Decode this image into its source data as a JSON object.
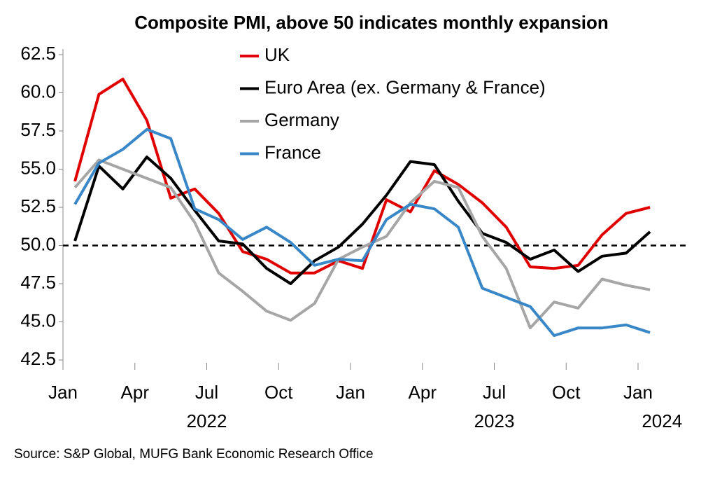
{
  "chart_data": {
    "type": "line",
    "title": "Composite PMI, above 50 indicates monthly expansion",
    "source": "Source: S&P Global, MUFG Bank Economic Research Office",
    "x": [
      "2022-01",
      "2022-02",
      "2022-03",
      "2022-04",
      "2022-05",
      "2022-06",
      "2022-07",
      "2022-08",
      "2022-09",
      "2022-10",
      "2022-11",
      "2022-12",
      "2023-01",
      "2023-02",
      "2023-03",
      "2023-04",
      "2023-05",
      "2023-06",
      "2023-07",
      "2023-08",
      "2023-09",
      "2023-10",
      "2023-11",
      "2023-12",
      "2024-01"
    ],
    "series": [
      {
        "name": "UK",
        "color": "#e00000",
        "values": [
          54.2,
          59.9,
          60.9,
          58.2,
          53.1,
          53.7,
          52.1,
          49.6,
          49.1,
          48.2,
          48.2,
          49.0,
          48.5,
          53.0,
          52.2,
          54.9,
          54.0,
          52.8,
          51.2,
          48.6,
          48.5,
          48.7,
          50.7,
          52.1,
          52.5
        ]
      },
      {
        "name": "Euro Area (ex. Germany & France)",
        "color": "#000000",
        "values": [
          50.3,
          55.2,
          53.7,
          55.8,
          54.4,
          52.3,
          50.3,
          50.1,
          48.5,
          47.5,
          49.0,
          49.9,
          51.4,
          53.3,
          55.5,
          55.3,
          52.9,
          50.8,
          50.2,
          49.1,
          49.7,
          48.3,
          49.3,
          49.5,
          50.9
        ]
      },
      {
        "name": "Germany",
        "color": "#a6a6a6",
        "values": [
          53.8,
          55.6,
          55.0,
          54.4,
          53.8,
          51.5,
          48.2,
          47.0,
          45.7,
          45.1,
          46.2,
          49.1,
          49.9,
          50.6,
          52.8,
          54.2,
          53.8,
          50.6,
          48.5,
          44.6,
          46.3,
          45.9,
          47.8,
          47.4,
          47.1
        ]
      },
      {
        "name": "France",
        "color": "#3a87c8",
        "values": [
          52.7,
          55.4,
          56.3,
          57.6,
          57.0,
          52.4,
          51.7,
          50.4,
          51.2,
          50.2,
          48.7,
          49.1,
          49.0,
          51.7,
          52.7,
          52.4,
          51.2,
          47.2,
          46.6,
          46.0,
          44.1,
          44.6,
          44.6,
          44.8,
          44.3
        ]
      }
    ],
    "reference_line": 50,
    "xlim": [
      "2022-01",
      "2024-03"
    ],
    "xticks": [
      {
        "value": "2022-01",
        "label": "Jan"
      },
      {
        "value": "2022-04",
        "label": "Apr"
      },
      {
        "value": "2022-07",
        "label": "Jul"
      },
      {
        "value": "2022-10",
        "label": "Oct"
      },
      {
        "value": "2023-01",
        "label": "Jan"
      },
      {
        "value": "2023-04",
        "label": "Apr"
      },
      {
        "value": "2023-07",
        "label": "Jul"
      },
      {
        "value": "2023-10",
        "label": "Oct"
      },
      {
        "value": "2024-01",
        "label": "Jan"
      }
    ],
    "xyears": [
      {
        "value": "2022-07",
        "label": "2022"
      },
      {
        "value": "2023-07",
        "label": "2023"
      },
      {
        "value": "2024-02",
        "label": "2024"
      }
    ],
    "ylim": [
      42.5,
      62.5
    ],
    "yticks": [
      {
        "value": 42.5,
        "label": "42.5"
      },
      {
        "value": 45,
        "label": "45.0"
      },
      {
        "value": 47.5,
        "label": "47.5"
      },
      {
        "value": 50,
        "label": "50.0"
      },
      {
        "value": 52.5,
        "label": "52.5"
      },
      {
        "value": 55,
        "label": "55.0"
      },
      {
        "value": 57.5,
        "label": "57.5"
      },
      {
        "value": 60,
        "label": "60.0"
      },
      {
        "value": 62.5,
        "label": "62.5"
      }
    ],
    "legend": "top"
  }
}
